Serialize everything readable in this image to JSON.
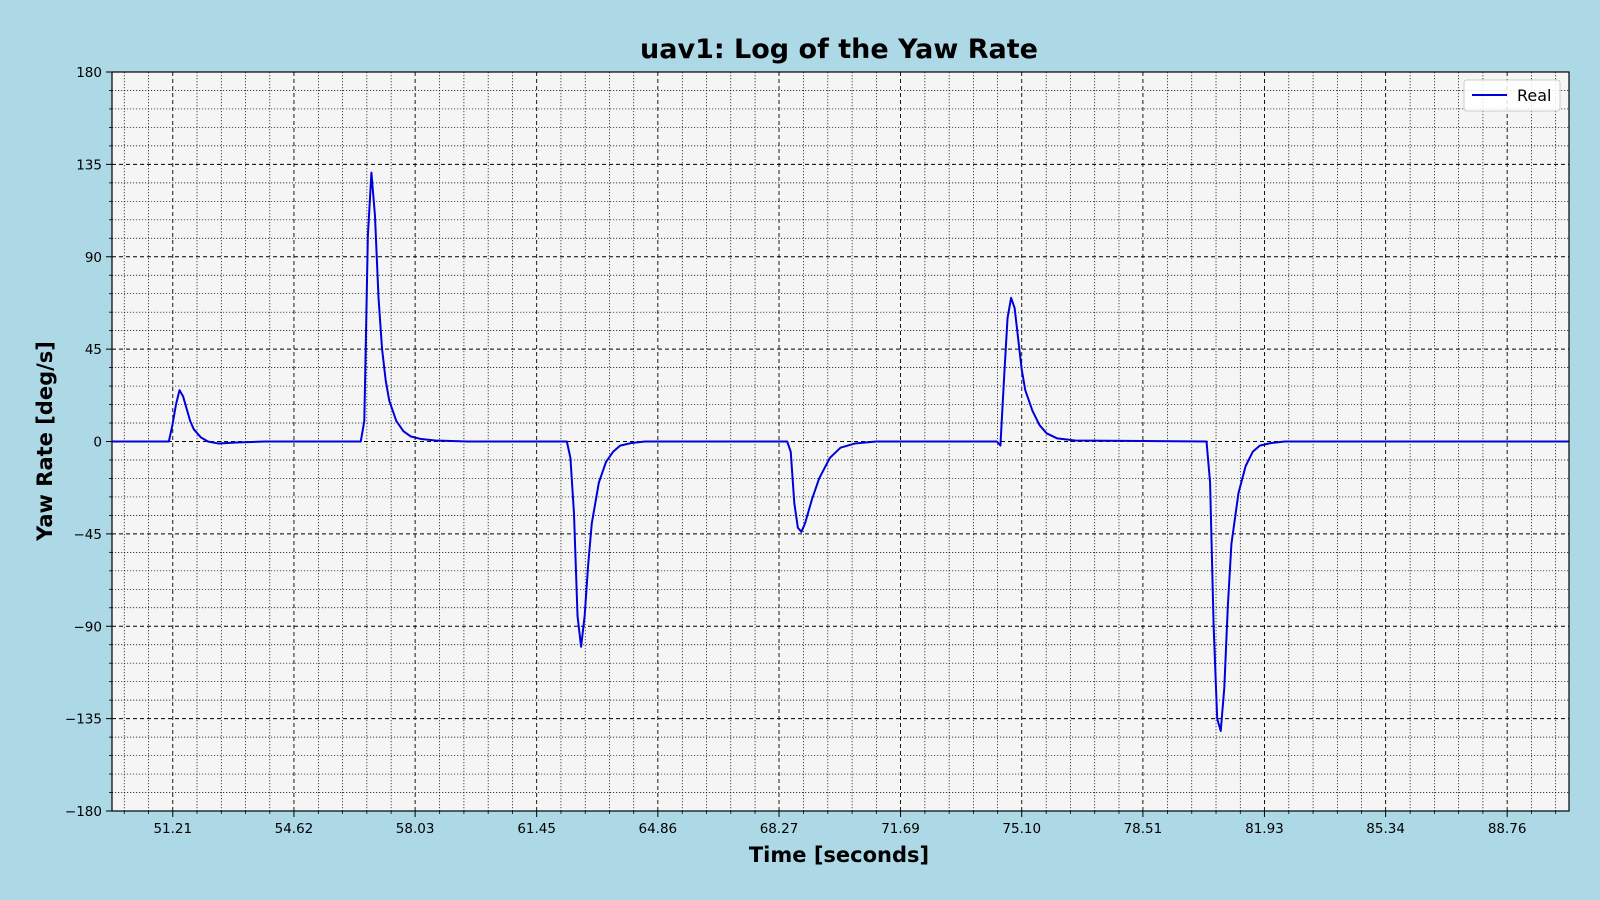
{
  "chart_data": {
    "type": "line",
    "title": "uav1: Log of the Yaw Rate",
    "xlabel": "Time [seconds]",
    "ylabel": "Yaw Rate [deg/s]",
    "xlim": [
      49.5,
      90.5
    ],
    "ylim": [
      -180,
      180
    ],
    "x_ticks": [
      51.21,
      54.62,
      58.03,
      61.45,
      64.86,
      68.27,
      71.69,
      75.1,
      78.51,
      81.93,
      85.34,
      88.76
    ],
    "x_tick_labels": [
      "51.21",
      "54.62",
      "58.03",
      "61.45",
      "64.86",
      "68.27",
      "71.69",
      "75.10",
      "78.51",
      "81.93",
      "85.34",
      "88.76"
    ],
    "y_ticks": [
      -180,
      -135,
      -90,
      -45,
      0,
      45,
      90,
      135,
      180
    ],
    "y_tick_labels": [
      "−180",
      "−135",
      "−90",
      "−45",
      "0",
      "45",
      "90",
      "135",
      "180"
    ],
    "grid": true,
    "minor_grid": true,
    "legend_position": "top-right",
    "colors": {
      "background": "#add8e6",
      "plot_bg": "#f5f5f5",
      "series": "#0000dd"
    },
    "series": [
      {
        "name": "Real",
        "x": [
          49.5,
          51.1,
          51.2,
          51.3,
          51.4,
          51.5,
          51.6,
          51.7,
          51.8,
          51.9,
          52.0,
          52.2,
          52.5,
          53.0,
          53.8,
          55.0,
          56.5,
          56.6,
          56.7,
          56.8,
          56.9,
          57.0,
          57.1,
          57.2,
          57.3,
          57.5,
          57.7,
          57.9,
          58.2,
          58.6,
          59.5,
          62.3,
          62.4,
          62.5,
          62.6,
          62.7,
          62.8,
          62.9,
          63.0,
          63.2,
          63.4,
          63.6,
          63.8,
          64.1,
          64.5,
          68.5,
          68.6,
          68.7,
          68.8,
          68.9,
          69.0,
          69.2,
          69.4,
          69.7,
          70.0,
          70.4,
          71.0,
          74.4,
          74.5,
          74.6,
          74.7,
          74.8,
          74.9,
          75.0,
          75.1,
          75.2,
          75.4,
          75.6,
          75.8,
          76.1,
          76.6,
          80.3,
          80.4,
          80.5,
          80.6,
          80.7,
          80.8,
          80.9,
          81.0,
          81.2,
          81.4,
          81.6,
          81.8,
          82.1,
          82.5,
          90.5
        ],
        "values": [
          0,
          0,
          8,
          18,
          25,
          22,
          16,
          10,
          6,
          4,
          2,
          0,
          -1,
          -0.5,
          0,
          0,
          0,
          10,
          100,
          131,
          110,
          70,
          45,
          30,
          20,
          10,
          5,
          2.5,
          1.2,
          0.5,
          0,
          0,
          -8,
          -35,
          -85,
          -100,
          -85,
          -60,
          -40,
          -20,
          -10,
          -5,
          -2,
          -0.8,
          0,
          0,
          -5,
          -30,
          -42,
          -44,
          -40,
          -28,
          -18,
          -8,
          -3,
          -1,
          0,
          0,
          -2,
          30,
          60,
          70,
          65,
          50,
          35,
          25,
          15,
          8,
          4,
          1.5,
          0.5,
          0,
          -20,
          -90,
          -135,
          -141,
          -120,
          -80,
          -50,
          -25,
          -12,
          -5,
          -2,
          -0.8,
          0,
          0
        ]
      }
    ]
  }
}
